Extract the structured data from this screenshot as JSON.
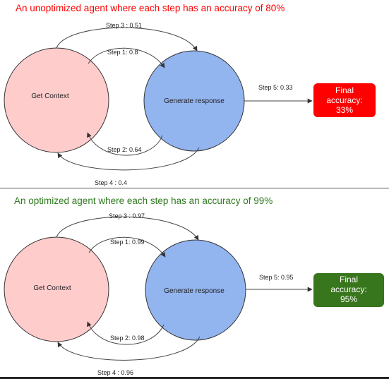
{
  "top": {
    "title": "An unoptimized agent where each step has an accuracy of 80%",
    "node_left": "Get Context",
    "node_right": "Generate response",
    "step1": "Step 1: 0.8",
    "step2": "Step 2: 0.64",
    "step3": "Step 3  : 0.51",
    "step4": "Step 4  : 0.4",
    "step5": "Step 5: 0.33",
    "final": [
      "Final",
      "accuracy:",
      "33%"
    ],
    "colors": {
      "title": "#ff0000",
      "left_node": "#ffcccc",
      "right_node": "#92b4ef",
      "final_box": "#ff0000"
    }
  },
  "bottom": {
    "title": "An optimized agent where each step has an accuracy of 99%",
    "node_left": "Get Context",
    "node_right": "Generate response",
    "step1": "Step 1: 0.99",
    "step2": "Step 2: 0.98",
    "step3": "Step 3  : 0.97",
    "step4": "Step 4  : 0.96",
    "step5": "Step 5: 0.95",
    "final": [
      "Final",
      "accuracy:",
      "95%"
    ],
    "colors": {
      "title": "#2f7a1f",
      "left_node": "#ffcccc",
      "right_node": "#92b4ef",
      "final_box": "#38761d"
    }
  }
}
